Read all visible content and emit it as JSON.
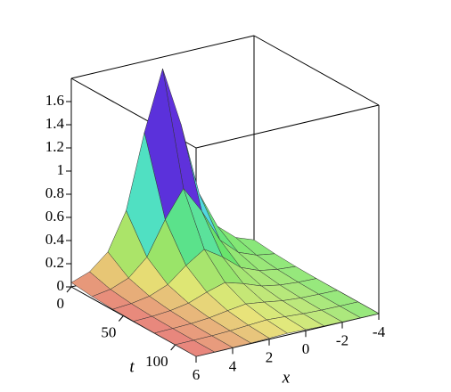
{
  "chart_data": {
    "type": "surface",
    "x": [
      6,
      5,
      4,
      3,
      2,
      1,
      0,
      -1,
      -2,
      -3,
      -4
    ],
    "t": [
      0,
      20,
      40,
      60,
      80,
      100,
      120
    ],
    "z": [
      [
        0.037,
        0.094,
        0.228,
        0.547,
        1.185,
        1.7,
        1.185,
        0.547,
        0.228,
        0.094,
        0.037
      ],
      [
        0.017,
        0.042,
        0.103,
        0.246,
        0.533,
        0.765,
        0.533,
        0.246,
        0.103,
        0.042,
        0.017
      ],
      [
        0.007,
        0.019,
        0.046,
        0.109,
        0.237,
        0.34,
        0.237,
        0.109,
        0.046,
        0.019,
        0.007
      ],
      [
        0.003,
        0.008,
        0.021,
        0.049,
        0.107,
        0.153,
        0.107,
        0.049,
        0.021,
        0.008,
        0.003
      ],
      [
        0.001,
        0.004,
        0.009,
        0.022,
        0.047,
        0.068,
        0.047,
        0.022,
        0.009,
        0.004,
        0.001
      ],
      [
        0.001,
        0.002,
        0.004,
        0.01,
        0.021,
        0.031,
        0.021,
        0.01,
        0.004,
        0.002,
        0.001
      ],
      [
        0,
        0.001,
        0.002,
        0.004,
        0.009,
        0.014,
        0.009,
        0.004,
        0.002,
        0.001,
        0
      ]
    ],
    "xlim": [
      -4,
      6
    ],
    "tlim": [
      0,
      120
    ],
    "zlim": [
      0,
      1.8
    ],
    "xticks": [
      6,
      4,
      2,
      0,
      -2,
      -4
    ],
    "tticks": [
      0,
      50,
      100
    ],
    "zticks": [
      0,
      0.2,
      0.4,
      0.6,
      0.8,
      1,
      1.2,
      1.4,
      1.6
    ],
    "xlabel": "x",
    "tlabel": "t"
  }
}
